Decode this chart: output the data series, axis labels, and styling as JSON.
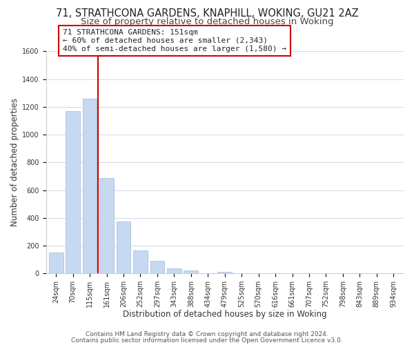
{
  "title": "71, STRATHCONA GARDENS, KNAPHILL, WOKING, GU21 2AZ",
  "subtitle": "Size of property relative to detached houses in Woking",
  "xlabel": "Distribution of detached houses by size in Woking",
  "ylabel": "Number of detached properties",
  "bar_labels": [
    "24sqm",
    "70sqm",
    "115sqm",
    "161sqm",
    "206sqm",
    "252sqm",
    "297sqm",
    "343sqm",
    "388sqm",
    "434sqm",
    "479sqm",
    "525sqm",
    "570sqm",
    "616sqm",
    "661sqm",
    "707sqm",
    "752sqm",
    "798sqm",
    "843sqm",
    "889sqm",
    "934sqm"
  ],
  "bar_values": [
    152,
    1172,
    1258,
    687,
    375,
    163,
    92,
    37,
    22,
    0,
    10,
    0,
    0,
    0,
    0,
    0,
    0,
    0,
    0,
    0,
    0
  ],
  "bar_color": "#c6d9f0",
  "bar_edge_color": "#a0b8d8",
  "ylim": [
    0,
    1600
  ],
  "yticks": [
    0,
    200,
    400,
    600,
    800,
    1000,
    1200,
    1400,
    1600
  ],
  "property_line_idx": 2,
  "annotation_title": "71 STRATHCONA GARDENS: 151sqm",
  "annotation_line1": "← 60% of detached houses are smaller (2,343)",
  "annotation_line2": "40% of semi-detached houses are larger (1,580) →",
  "annotation_box_facecolor": "#ffffff",
  "annotation_box_edgecolor": "#cc0000",
  "line_color": "#cc0000",
  "title_fontsize": 10.5,
  "subtitle_fontsize": 9.5,
  "axis_label_fontsize": 8.5,
  "tick_fontsize": 7,
  "annotation_fontsize": 8,
  "footer_fontsize": 6.5,
  "footer1": "Contains HM Land Registry data © Crown copyright and database right 2024.",
  "footer2": "Contains public sector information licensed under the Open Government Licence v3.0.",
  "grid_color": "#d0d8e8",
  "spine_color": "#cccccc"
}
